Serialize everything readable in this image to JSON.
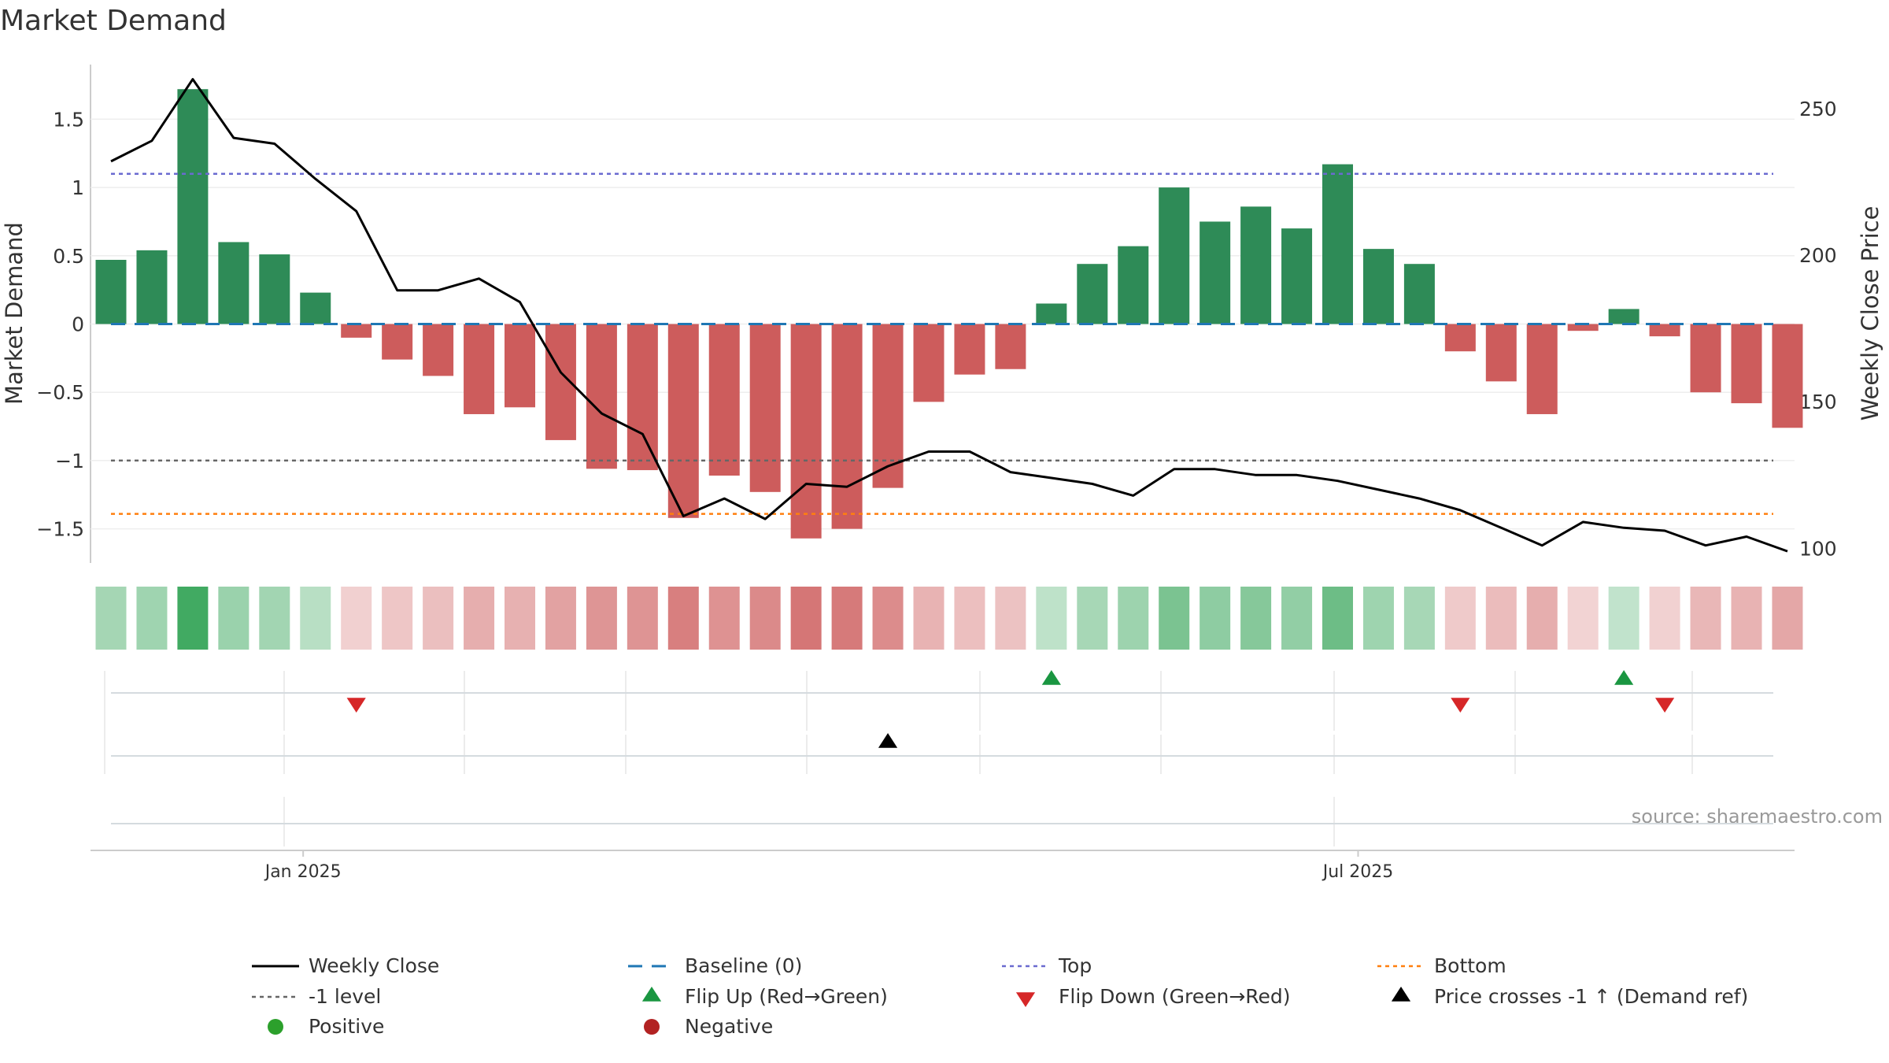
{
  "chart_data": {
    "type": "bar",
    "title": "Market Demand",
    "ylabel_left": "Market Demand",
    "ylabel_right": "Weekly Close Price",
    "source": "source: sharemaestro.com",
    "ylim_left": [
      -1.75,
      1.9
    ],
    "ylim_right": [
      95,
      265
    ],
    "yticks_left": [
      {
        "v": 1.5,
        "label": "1.5"
      },
      {
        "v": 1,
        "label": "1"
      },
      {
        "v": 0.5,
        "label": "0.5"
      },
      {
        "v": 0,
        "label": "0"
      },
      {
        "v": -0.5,
        "label": "−0.5"
      },
      {
        "v": -1,
        "label": "−1"
      },
      {
        "v": -1.5,
        "label": "−1.5"
      }
    ],
    "yticks_right": [
      {
        "v": 250,
        "label": "250"
      },
      {
        "v": 200,
        "label": "200"
      },
      {
        "v": 150,
        "label": "150"
      },
      {
        "v": 100,
        "label": "100"
      }
    ],
    "x_ticks": [
      {
        "week": 4.7,
        "label": "Jan 2025"
      },
      {
        "week": 30.5,
        "label": "Jul 2025"
      }
    ],
    "reference_lines": {
      "baseline": 0,
      "top": 1.1,
      "minus_one": -1,
      "bottom": -1.39
    },
    "demand": [
      0.47,
      0.54,
      1.72,
      0.6,
      0.51,
      0.23,
      -0.1,
      -0.26,
      -0.38,
      -0.66,
      -0.61,
      -0.85,
      -1.06,
      -1.07,
      -1.42,
      -1.11,
      -1.23,
      -1.57,
      -1.5,
      -1.2,
      -0.57,
      -0.37,
      -0.33,
      0.15,
      0.44,
      0.57,
      1.0,
      0.75,
      0.86,
      0.7,
      1.17,
      0.55,
      0.44,
      -0.2,
      -0.42,
      -0.66,
      -0.05,
      0.11,
      -0.09,
      -0.5,
      -0.58,
      -0.76
    ],
    "weekly_close": [
      232,
      239,
      260,
      240,
      238,
      226,
      215,
      188,
      188,
      192,
      184,
      160,
      146,
      139,
      111,
      117,
      110,
      122,
      121,
      128,
      133,
      133,
      126,
      124,
      122,
      118,
      127,
      127,
      125,
      125,
      123,
      120,
      117,
      113,
      107,
      101,
      109,
      107,
      106,
      101,
      104,
      99
    ],
    "markers": {
      "flip_up_weeks": [
        23,
        37
      ],
      "flip_down_weeks": [
        6,
        33,
        38
      ],
      "price_cross_weeks": [
        19
      ]
    },
    "colors": {
      "positive_bar": "#2e8b57",
      "negative_bar": "#cd5c5c",
      "close_line": "#000000",
      "baseline": "#1f77b4",
      "top": "#6a6ad0",
      "minus_one": "#666666",
      "bottom": "#ff7f0e",
      "flip_up": "#1a9641",
      "flip_down": "#d62728",
      "price_cross": "#000000",
      "positive_dot": "#2ca02c",
      "negative_dot": "#b22222"
    },
    "legend": {
      "weekly_close": "Weekly Close",
      "baseline": "Baseline (0)",
      "top": "Top",
      "bottom": "Bottom",
      "minus_one": "-1 level",
      "flip_up": "Flip Up (Red→Green)",
      "flip_down": "Flip Down (Green→Red)",
      "price_cross": "Price crosses -1 ↑ (Demand ref)",
      "positive": "Positive",
      "negative": "Negative"
    }
  }
}
